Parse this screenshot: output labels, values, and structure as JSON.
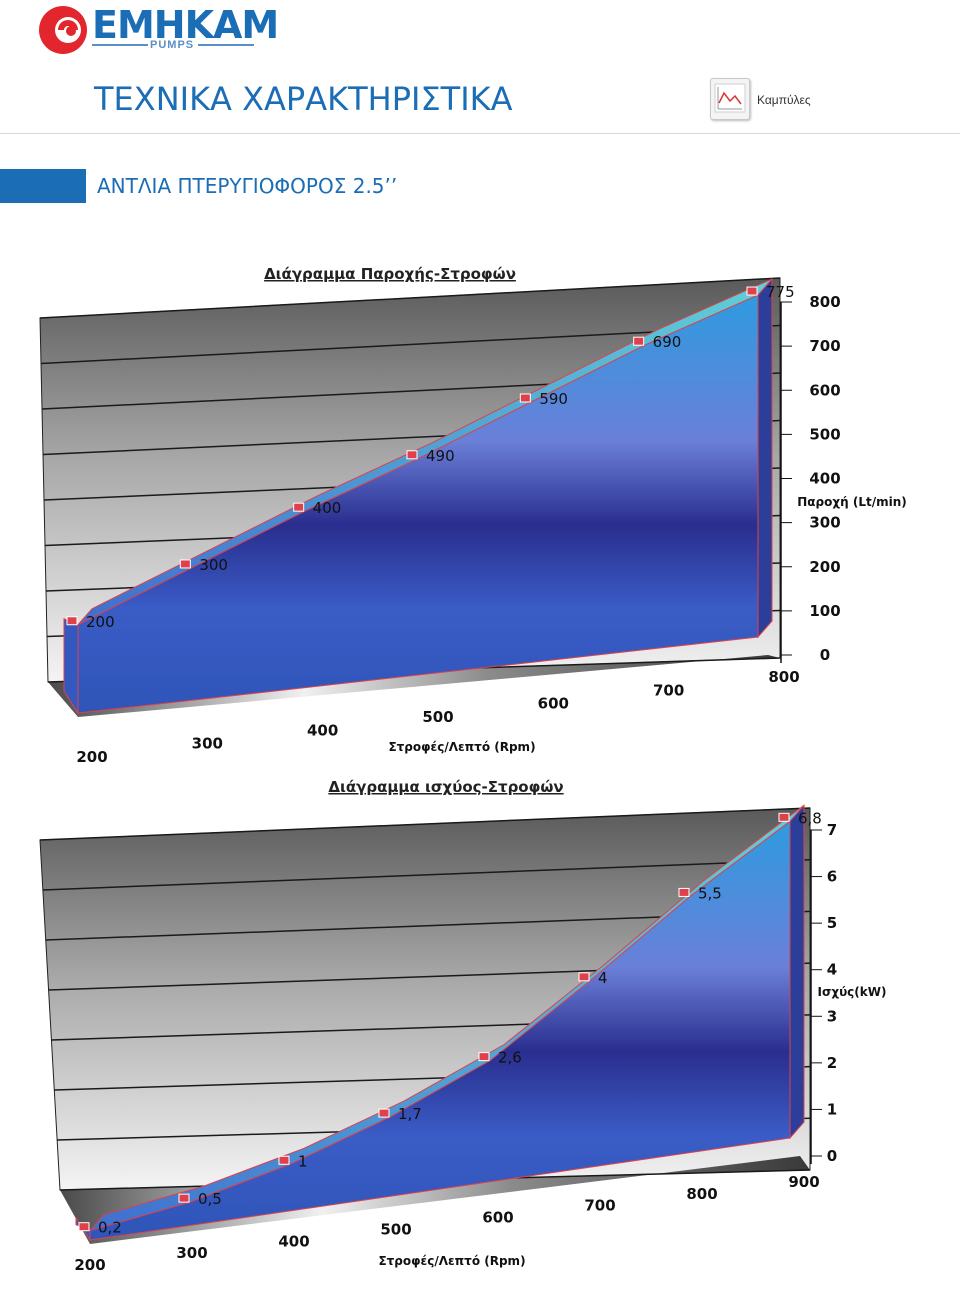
{
  "header": {
    "brand": "EMHKAM",
    "brand_sub": "PUMPS",
    "title": "ΤΕΧΝΙΚΑ ΧΑΡΑΚΤΗΡΙΣΤΙΚΑ",
    "curves_label": "Καμπύλες",
    "subtitle": "ΑΝΤΛΙΑ ΠΤΕΡΥΓΙΟΦΟΡΟΣ 2.5’’"
  },
  "colors": {
    "brand_blue": "#1b6db5",
    "logo_red": "#e3262d",
    "series_blue": "#2f55b8",
    "marker_red": "#e0404a"
  },
  "chart_data": [
    {
      "type": "area",
      "title": "Διάγραμμα Παροχής-Στροφών",
      "xlabel": "Στροφές/Λεπτό (Rpm)",
      "ylabel": "Παροχή (Lt/min)",
      "categories": [
        "200",
        "300",
        "400",
        "500",
        "600",
        "700",
        "800"
      ],
      "series": [
        {
          "values": [
            200,
            300,
            400,
            490,
            590,
            690,
            775
          ]
        }
      ],
      "data_labels": [
        "200",
        "300",
        "400",
        "490",
        "590",
        "690",
        "775"
      ],
      "ylim": [
        0,
        800
      ],
      "yticks": [
        "0",
        "100",
        "200",
        "300",
        "400",
        "500",
        "600",
        "700",
        "800"
      ],
      "grid": true,
      "style": "3d"
    },
    {
      "type": "area",
      "title": "Διάγραμμα ισχύος-Στροφών",
      "xlabel": "Στροφές/Λεπτό (Rpm)",
      "ylabel": "Ισχύς(kW)",
      "categories": [
        "200",
        "300",
        "400",
        "500",
        "600",
        "700",
        "800",
        "900"
      ],
      "series": [
        {
          "values": [
            0.2,
            0.5,
            1,
            1.7,
            2.6,
            4,
            5.5,
            6.8
          ]
        }
      ],
      "data_labels": [
        "0,2",
        "0,5",
        "1",
        "1,7",
        "2,6",
        "4",
        "5,5",
        "6,8"
      ],
      "ylim": [
        0,
        7
      ],
      "yticks": [
        "0",
        "1",
        "2",
        "3",
        "4",
        "5",
        "6",
        "7"
      ],
      "grid": true,
      "style": "3d"
    }
  ]
}
